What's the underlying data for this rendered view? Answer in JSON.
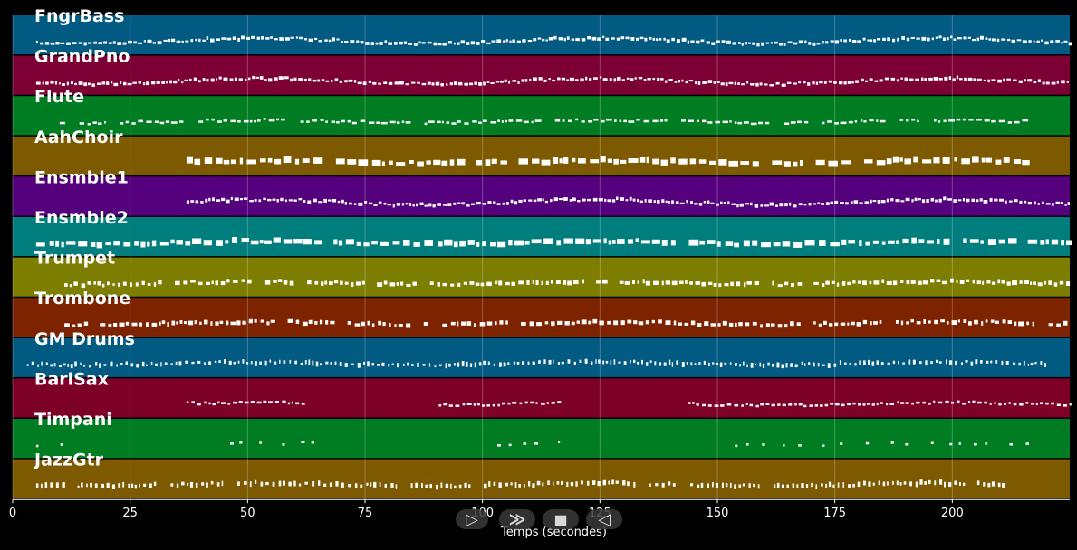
{
  "chart_data": {
    "type": "piano-roll",
    "xlabel": "Temps (secondes)",
    "xlim": [
      0,
      225
    ],
    "xticks": [
      0,
      25,
      50,
      75,
      100,
      125,
      150,
      175,
      200
    ],
    "grid": true,
    "tracks": [
      {
        "name": "FngrBass",
        "color": "#005a82",
        "start": 5,
        "end": 225,
        "style": "dense-wave"
      },
      {
        "name": "GrandPno",
        "color": "#7d0035",
        "start": 5,
        "end": 225,
        "style": "dense-wave"
      },
      {
        "name": "Flute",
        "color": "#007d23",
        "start": 10,
        "end": 216,
        "style": "phrases"
      },
      {
        "name": "AahChoir",
        "color": "#7d5a00",
        "start": 37,
        "end": 216,
        "style": "blocks"
      },
      {
        "name": "Ensmble1",
        "color": "#55007d",
        "start": 37,
        "end": 225,
        "style": "dense-wave"
      },
      {
        "name": "Ensmble2",
        "color": "#007d7d",
        "start": 5,
        "end": 225,
        "style": "blocks"
      },
      {
        "name": "Trumpet",
        "color": "#7d7d00",
        "start": 11,
        "end": 225,
        "style": "sparse"
      },
      {
        "name": "Trombone",
        "color": "#7d2300",
        "start": 11,
        "end": 225,
        "style": "sparse"
      },
      {
        "name": "GM Drums",
        "color": "#005a82",
        "start": 3,
        "end": 220,
        "style": "drums"
      },
      {
        "name": "BariSax",
        "color": "#7d0028",
        "start": 37,
        "end": 225,
        "style": "sections"
      },
      {
        "name": "Timpani",
        "color": "#007d23",
        "start": 5,
        "end": 216,
        "style": "hits"
      },
      {
        "name": "JazzGtr",
        "color": "#7d5a00",
        "start": 5,
        "end": 211,
        "style": "ticks"
      }
    ]
  },
  "controls": [
    {
      "name": "play-outline-button",
      "glyph": "▷"
    },
    {
      "name": "forward-button",
      "glyph": "≫"
    },
    {
      "name": "stop-button",
      "glyph": "■"
    },
    {
      "name": "rewind-button",
      "glyph": "◁"
    }
  ]
}
